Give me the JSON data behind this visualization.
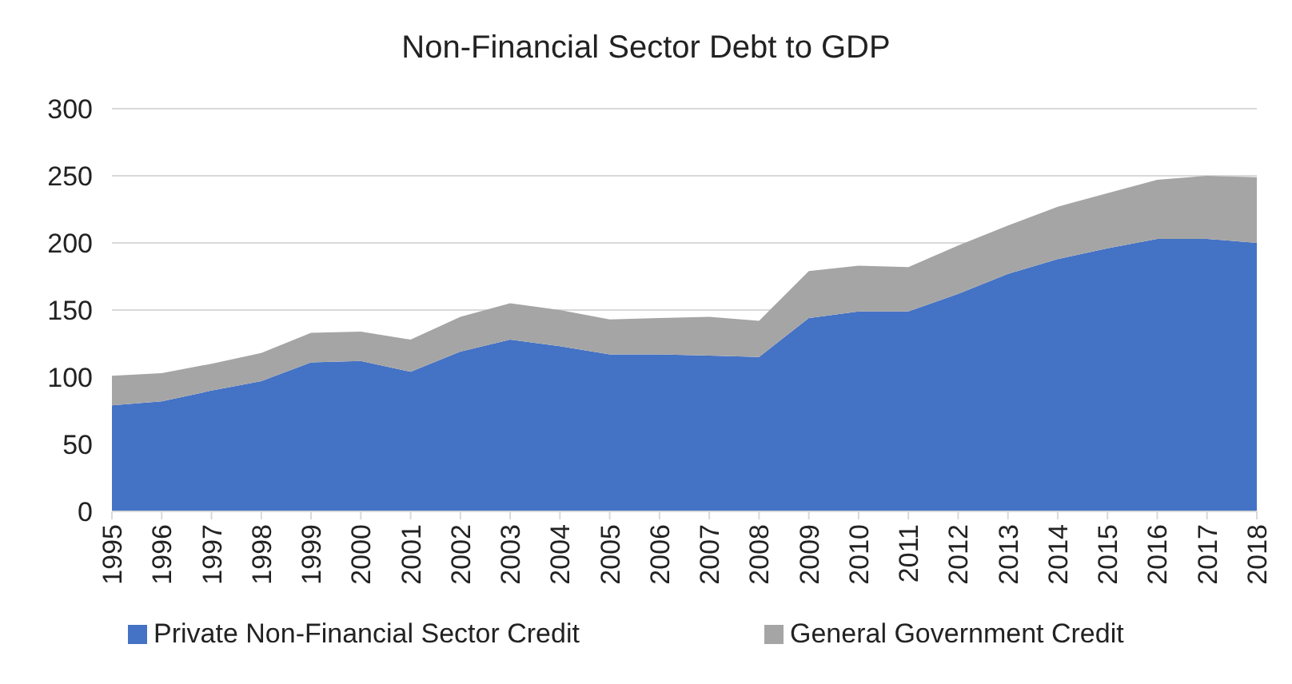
{
  "chart_data": {
    "type": "area",
    "title": "Non-Financial Sector Debt to GDP",
    "stacked": true,
    "categories": [
      "1995",
      "1996",
      "1997",
      "1998",
      "1999",
      "2000",
      "2001",
      "2002",
      "2003",
      "2004",
      "2005",
      "2006",
      "2007",
      "2008",
      "2009",
      "2010",
      "2011",
      "2012",
      "2013",
      "2014",
      "2015",
      "2016",
      "2017",
      "2018"
    ],
    "series": [
      {
        "name": "Private Non-Financial Sector Credit",
        "color": "#4472c4",
        "values": [
          79,
          82,
          90,
          97,
          111,
          112,
          104,
          119,
          128,
          123,
          117,
          117,
          116,
          115,
          144,
          149,
          149,
          162,
          177,
          188,
          196,
          203,
          203,
          200
        ]
      },
      {
        "name": "General Government Credit",
        "color": "#a5a5a5",
        "values": [
          22,
          21,
          20,
          21,
          22,
          22,
          24,
          26,
          27,
          27,
          26,
          27,
          29,
          27,
          35,
          34,
          33,
          36,
          36,
          39,
          41,
          44,
          47,
          49
        ]
      }
    ],
    "ylim": [
      0,
      300
    ],
    "yticks": [
      0,
      50,
      100,
      150,
      200,
      250,
      300
    ],
    "grid": "y",
    "legend": "bottom"
  }
}
